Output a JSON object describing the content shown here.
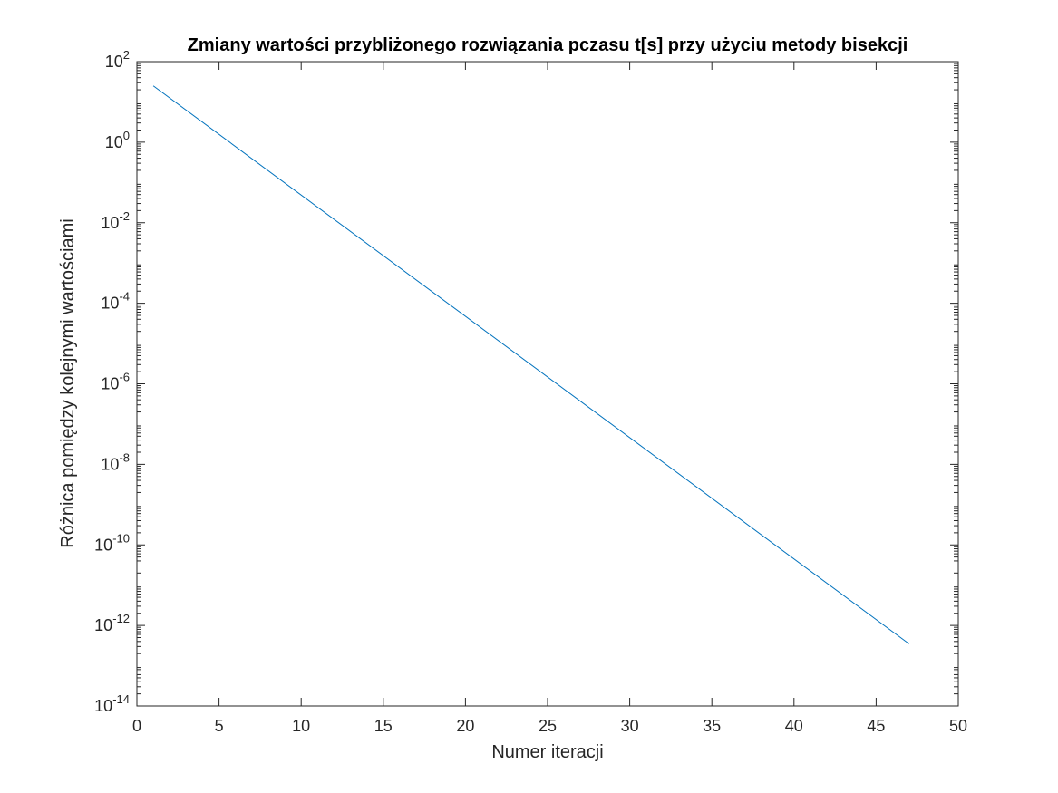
{
  "chart_data": {
    "type": "line",
    "title": "Zmiany wartości przybliżonego rozwiązania pczasu t[s] przy użyciu metody bisekcji",
    "xlabel": "Numer iteracji",
    "ylabel": "Różnica pomiędzy kolejnymi wartościami",
    "xlim": [
      0,
      50
    ],
    "ylim": [
      1e-14,
      100
    ],
    "yscale": "log",
    "grid": false,
    "x_ticks": [
      0,
      5,
      10,
      15,
      20,
      25,
      30,
      35,
      40,
      45,
      50
    ],
    "x_tick_labels": [
      "0",
      "5",
      "10",
      "15",
      "20",
      "25",
      "30",
      "35",
      "40",
      "45",
      "50"
    ],
    "y_ticks": [
      1e-14,
      1e-12,
      1e-10,
      1e-08,
      1e-06,
      0.0001,
      0.01,
      1,
      100
    ],
    "y_tick_labels": [
      {
        "base": "10",
        "exp": "-14"
      },
      {
        "base": "10",
        "exp": "-12"
      },
      {
        "base": "10",
        "exp": "-10"
      },
      {
        "base": "10",
        "exp": "-8"
      },
      {
        "base": "10",
        "exp": "-6"
      },
      {
        "base": "10",
        "exp": "-4"
      },
      {
        "base": "10",
        "exp": "-2"
      },
      {
        "base": "10",
        "exp": "0"
      },
      {
        "base": "10",
        "exp": "2"
      }
    ],
    "series": [
      {
        "color": "#0072BD",
        "x": [
          1,
          47
        ],
        "y": [
          25,
          3.5e-13
        ]
      }
    ]
  }
}
